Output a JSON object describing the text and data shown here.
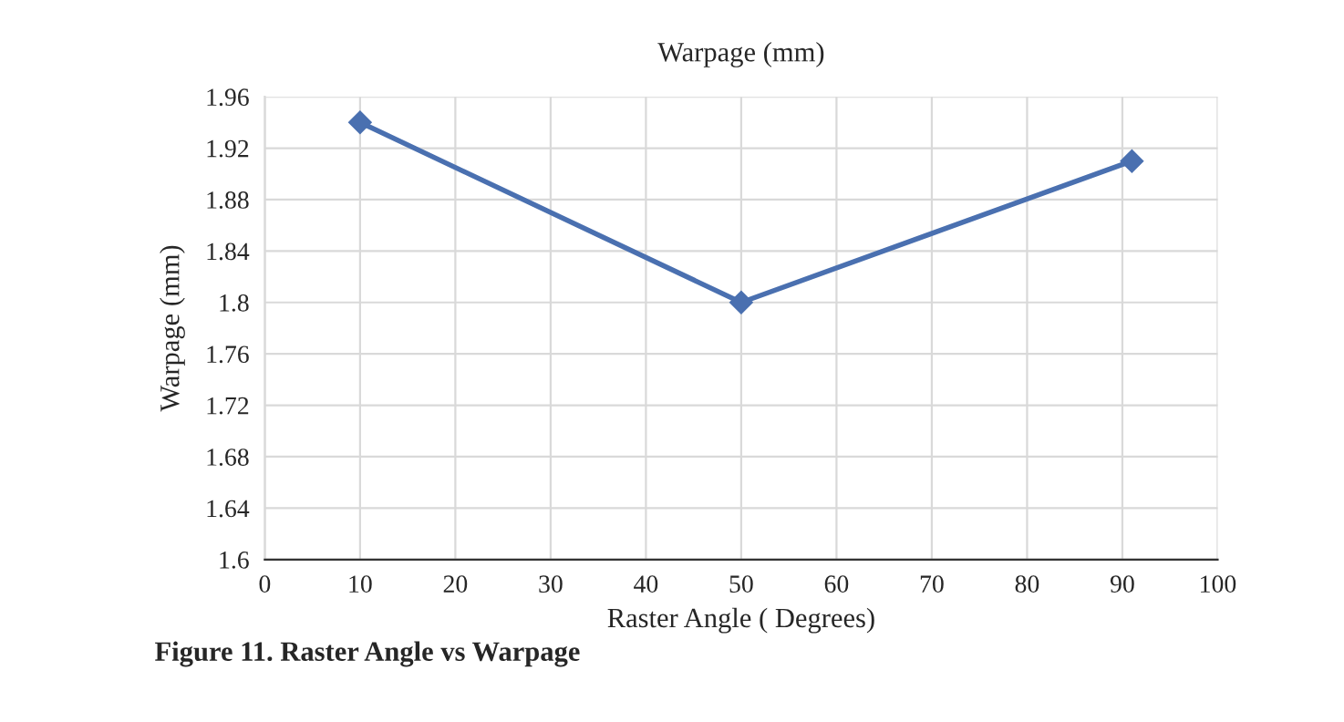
{
  "chart_data": {
    "type": "line",
    "title": "Warpage (mm)",
    "xlabel": "Raster Angle ( Degrees)",
    "ylabel": "Warpage (mm)",
    "x": [
      10,
      50,
      91
    ],
    "series": [
      {
        "color": "#4a70b0",
        "values": [
          1.94,
          1.8,
          1.91
        ]
      }
    ],
    "xlim": [
      0,
      100
    ],
    "xticks": [
      0,
      10,
      20,
      30,
      40,
      50,
      60,
      70,
      80,
      90,
      100
    ],
    "ylim": [
      1.6,
      1.96
    ],
    "yticks": [
      1.6,
      1.64,
      1.68,
      1.72,
      1.76,
      1.8,
      1.84,
      1.88,
      1.92,
      1.96
    ],
    "grid": true,
    "marker": "diamond",
    "line_style": "solid",
    "annotations": [
      "Figure 11. Raster Angle vs Warpage"
    ]
  }
}
